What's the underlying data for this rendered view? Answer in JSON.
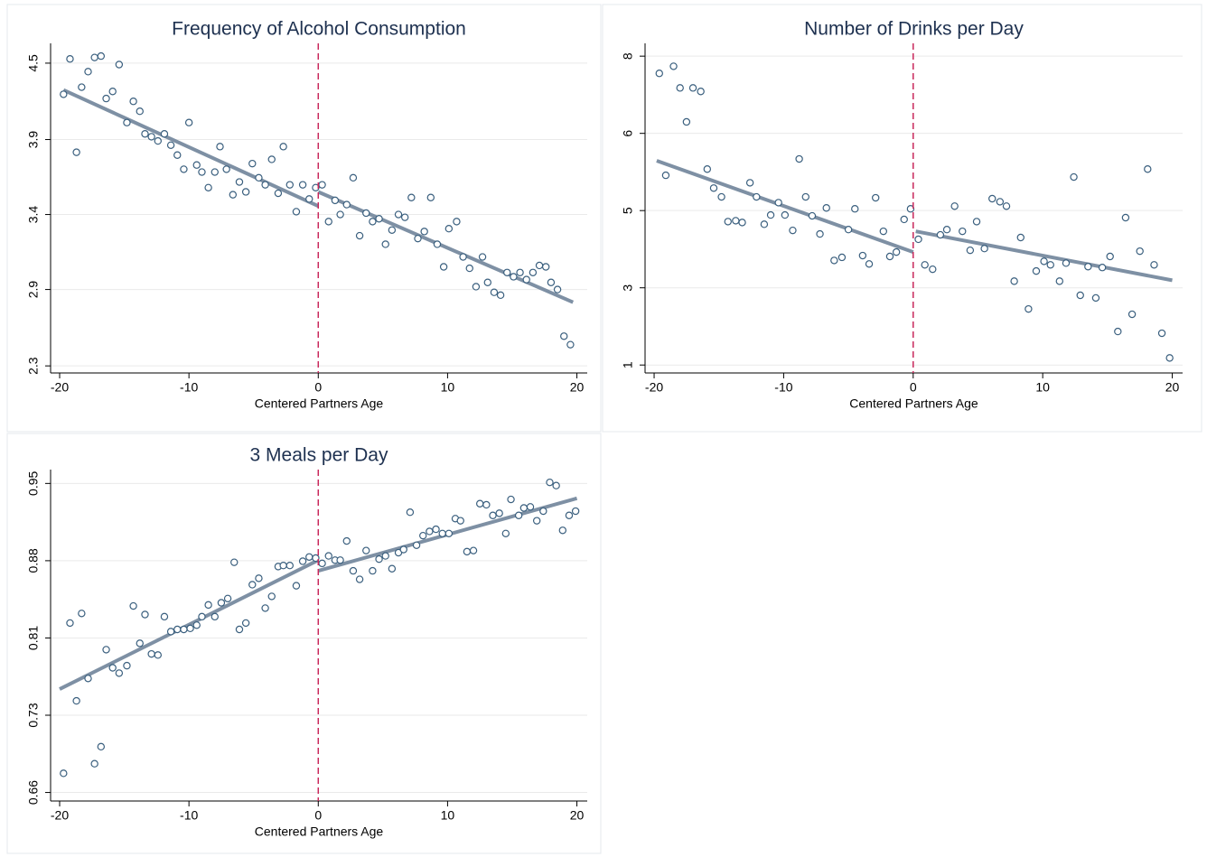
{
  "chart_data": [
    {
      "type": "scatter",
      "title": "Frequency of Alcohol Consumption",
      "xlabel": "Centered Partners Age",
      "x": [
        -19.7,
        -19.2,
        -18.7,
        -18.3,
        -17.8,
        -17.3,
        -16.8,
        -16.4,
        -15.9,
        -15.4,
        -14.8,
        -14.3,
        -13.8,
        -13.4,
        -12.9,
        -12.4,
        -11.9,
        -11.4,
        -10.9,
        -10.4,
        -10.0,
        -9.4,
        -9.0,
        -8.5,
        -8.0,
        -7.6,
        -7.1,
        -6.6,
        -6.1,
        -5.6,
        -5.1,
        -4.6,
        -4.1,
        -3.6,
        -3.1,
        -2.7,
        -2.2,
        -1.7,
        -1.2,
        -0.7,
        -0.2,
        0.3,
        0.8,
        1.3,
        1.7,
        2.2,
        2.7,
        3.2,
        3.7,
        4.2,
        4.7,
        5.2,
        5.7,
        6.2,
        6.7,
        7.2,
        7.7,
        8.2,
        8.7,
        9.2,
        9.7,
        10.1,
        10.7,
        11.2,
        11.7,
        12.2,
        12.7,
        13.1,
        13.6,
        14.1,
        14.6,
        15.1,
        15.6,
        16.1,
        16.6,
        17.1,
        17.6,
        18.0,
        18.5,
        19.0,
        19.5
      ],
      "values": [
        4.25,
        4.5,
        3.84,
        4.3,
        4.41,
        4.51,
        4.52,
        4.22,
        4.27,
        4.46,
        4.05,
        4.2,
        4.13,
        3.97,
        3.95,
        3.92,
        3.97,
        3.89,
        3.82,
        3.72,
        4.05,
        3.75,
        3.7,
        3.59,
        3.7,
        3.88,
        3.72,
        3.54,
        3.63,
        3.56,
        3.76,
        3.66,
        3.61,
        3.79,
        3.55,
        3.88,
        3.61,
        3.42,
        3.61,
        3.51,
        3.59,
        3.61,
        3.35,
        3.5,
        3.4,
        3.47,
        3.66,
        3.25,
        3.41,
        3.35,
        3.37,
        3.19,
        3.29,
        3.4,
        3.38,
        3.52,
        3.23,
        3.28,
        3.52,
        3.19,
        3.03,
        3.3,
        3.35,
        3.1,
        3.02,
        2.89,
        3.1,
        2.92,
        2.85,
        2.83,
        2.99,
        2.96,
        2.99,
        2.94,
        2.99,
        3.04,
        3.03,
        2.92,
        2.87,
        2.54,
        2.48
      ],
      "marker_color": "#3a5f7e",
      "fits": [
        {
          "x": [
            -19.7,
            0
          ],
          "values": [
            4.28,
            3.46
          ],
          "color": "#7e90a4"
        },
        {
          "x": [
            0,
            19.7
          ],
          "values": [
            3.56,
            2.78
          ],
          "color": "#7e90a4"
        }
      ],
      "cutoff": 0,
      "cutoff_color": "#c9285b",
      "xlim": [
        -20.7,
        20.8
      ],
      "xticks": [
        -20,
        -10,
        0,
        10,
        20
      ],
      "ylim": [
        2.28,
        4.61
      ],
      "yticks": [
        {
          "value": 2.33,
          "label": "2.3"
        },
        {
          "value": 2.87,
          "label": "2.9"
        },
        {
          "value": 3.4,
          "label": "3.4"
        },
        {
          "value": 3.93,
          "label": "3.9"
        },
        {
          "value": 4.47,
          "label": "4.5"
        }
      ],
      "grid": true
    },
    {
      "type": "scatter",
      "title": "Number of Drinks per Day",
      "xlabel": "Centered Partners Age",
      "x": [
        -19.6,
        -19.1,
        -18.5,
        -18.0,
        -17.5,
        -17.0,
        -16.4,
        -15.9,
        -15.4,
        -14.8,
        -14.3,
        -13.7,
        -13.2,
        -12.6,
        -12.1,
        -11.5,
        -11.0,
        -10.4,
        -9.9,
        -9.3,
        -8.8,
        -8.3,
        -7.8,
        -7.2,
        -6.7,
        -6.1,
        -5.5,
        -5.0,
        -4.5,
        -3.9,
        -3.4,
        -2.9,
        -2.3,
        -1.8,
        -1.3,
        -0.7,
        -0.2,
        0.4,
        0.9,
        1.5,
        2.1,
        2.6,
        3.2,
        3.8,
        4.4,
        4.9,
        5.5,
        6.1,
        6.7,
        7.2,
        7.8,
        8.3,
        8.9,
        9.5,
        10.1,
        10.6,
        11.3,
        11.8,
        12.4,
        12.9,
        13.5,
        14.1,
        14.6,
        15.2,
        15.8,
        16.4,
        16.9,
        17.5,
        18.1,
        18.6,
        19.2,
        19.8
      ],
      "values": [
        7.61,
        5.3,
        7.77,
        7.28,
        6.51,
        7.28,
        7.2,
        5.44,
        5.01,
        4.81,
        4.25,
        4.27,
        4.23,
        5.13,
        4.81,
        4.19,
        4.4,
        4.68,
        4.4,
        4.05,
        5.67,
        4.81,
        4.38,
        3.97,
        4.56,
        3.37,
        3.44,
        4.07,
        4.54,
        3.48,
        3.29,
        4.79,
        4.03,
        3.46,
        3.56,
        4.3,
        4.54,
        3.85,
        3.27,
        3.17,
        3.95,
        4.07,
        4.6,
        4.03,
        3.6,
        4.25,
        3.64,
        4.77,
        4.7,
        4.6,
        2.9,
        3.89,
        2.27,
        3.13,
        3.35,
        3.27,
        2.9,
        3.31,
        5.26,
        2.58,
        3.23,
        2.52,
        3.21,
        3.46,
        1.76,
        4.34,
        2.15,
        3.58,
        5.44,
        3.27,
        1.72,
        1.16
      ],
      "marker_color": "#3a5f7e",
      "fits": [
        {
          "x": [
            -19.8,
            0
          ],
          "values": [
            5.63,
            3.56
          ],
          "color": "#7e90a4"
        },
        {
          "x": [
            0.2,
            20.0
          ],
          "values": [
            4.03,
            2.92
          ],
          "color": "#7e90a4"
        }
      ],
      "cutoff": 0,
      "cutoff_color": "#c9285b",
      "xlim": [
        -20.7,
        20.8
      ],
      "xticks": [
        -20,
        -10,
        0,
        10,
        20
      ],
      "ylim": [
        0.82,
        8.29
      ],
      "yticks": [
        1,
        {
          "value": 2.75,
          "label": "3"
        },
        {
          "value": 4.5,
          "label": "5"
        },
        {
          "value": 6.25,
          "label": "6"
        },
        8
      ],
      "grid": true
    },
    {
      "type": "scatter",
      "title": "3 Meals per Day",
      "xlabel": "Centered Partners Age",
      "x": [
        -19.7,
        -19.2,
        -18.7,
        -18.3,
        -17.8,
        -17.3,
        -16.8,
        -16.4,
        -15.9,
        -15.4,
        -14.8,
        -14.3,
        -13.8,
        -13.4,
        -12.9,
        -12.4,
        -11.9,
        -11.4,
        -10.9,
        -10.4,
        -9.9,
        -9.4,
        -9.0,
        -8.5,
        -8.0,
        -7.5,
        -7.0,
        -6.5,
        -6.1,
        -5.6,
        -5.1,
        -4.6,
        -4.1,
        -3.6,
        -3.1,
        -2.7,
        -2.2,
        -1.7,
        -1.2,
        -0.7,
        -0.2,
        0.3,
        0.8,
        1.3,
        1.7,
        2.2,
        2.7,
        3.2,
        3.7,
        4.2,
        4.7,
        5.2,
        5.7,
        6.2,
        6.6,
        7.1,
        7.6,
        8.1,
        8.6,
        9.1,
        9.6,
        10.1,
        10.6,
        11.0,
        11.5,
        12.0,
        12.5,
        13.0,
        13.5,
        14.0,
        14.5,
        14.9,
        15.5,
        15.9,
        16.4,
        16.9,
        17.4,
        17.9,
        18.4,
        18.9,
        19.4,
        19.9
      ],
      "values": [
        0.678,
        0.819,
        0.746,
        0.828,
        0.767,
        0.687,
        0.703,
        0.794,
        0.777,
        0.772,
        0.779,
        0.835,
        0.8,
        0.827,
        0.79,
        0.789,
        0.825,
        0.811,
        0.813,
        0.813,
        0.814,
        0.817,
        0.825,
        0.836,
        0.825,
        0.838,
        0.842,
        0.876,
        0.813,
        0.819,
        0.855,
        0.861,
        0.833,
        0.844,
        0.872,
        0.873,
        0.873,
        0.854,
        0.877,
        0.881,
        0.88,
        0.875,
        0.882,
        0.878,
        0.878,
        0.896,
        0.868,
        0.86,
        0.887,
        0.868,
        0.879,
        0.882,
        0.87,
        0.885,
        0.888,
        0.923,
        0.892,
        0.901,
        0.905,
        0.907,
        0.903,
        0.903,
        0.917,
        0.915,
        0.886,
        0.887,
        0.931,
        0.93,
        0.92,
        0.922,
        0.903,
        0.935,
        0.92,
        0.927,
        0.928,
        0.915,
        0.924,
        0.951,
        0.948,
        0.906,
        0.92,
        0.924
      ],
      "marker_color": "#3a5f7e",
      "fits": [
        {
          "x": [
            -20.0,
            0
          ],
          "values": [
            0.757,
            0.878
          ],
          "color": "#7e90a4"
        },
        {
          "x": [
            0,
            20.0
          ],
          "values": [
            0.868,
            0.936
          ],
          "color": "#7e90a4"
        }
      ],
      "cutoff": 0,
      "cutoff_color": "#c9285b",
      "xlim": [
        -20.7,
        20.8
      ],
      "xticks": [
        -20,
        -10,
        0,
        10,
        20
      ],
      "ylim": [
        0.652,
        0.963
      ],
      "yticks": [
        0.66,
        {
          "value": 0.7325,
          "label": "0.73"
        },
        {
          "value": 0.805,
          "label": "0.81"
        },
        {
          "value": 0.8775,
          "label": "0.88"
        },
        0.95
      ],
      "grid": true
    }
  ]
}
